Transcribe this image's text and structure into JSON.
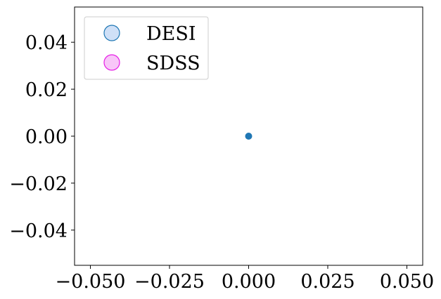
{
  "chart_data": {
    "type": "scatter",
    "title": "",
    "xlabel": "",
    "ylabel": "",
    "xlim": [
      -0.055,
      0.055
    ],
    "ylim": [
      -0.055,
      0.055
    ],
    "grid": false,
    "legend_position": "top-left",
    "xticks": [
      -0.05,
      -0.025,
      0.0,
      0.025,
      0.05
    ],
    "xtick_labels": [
      "−0.050",
      "−0.025",
      "0.000",
      "0.025",
      "0.050"
    ],
    "yticks": [
      -0.04,
      -0.02,
      0.0,
      0.02,
      0.04
    ],
    "ytick_labels": [
      "−0.04",
      "−0.02",
      "0.00",
      "0.02",
      "0.04"
    ],
    "legend": [
      {
        "name": "DESI",
        "edge_color": "#1f77b4",
        "fill_color": "#cfe0f7"
      },
      {
        "name": "SDSS",
        "edge_color": "#e61ee6",
        "fill_color": "#f8c6f8"
      }
    ],
    "points": [
      {
        "x": 0.0,
        "y": 0.0,
        "color": "#1f77b4"
      }
    ]
  }
}
